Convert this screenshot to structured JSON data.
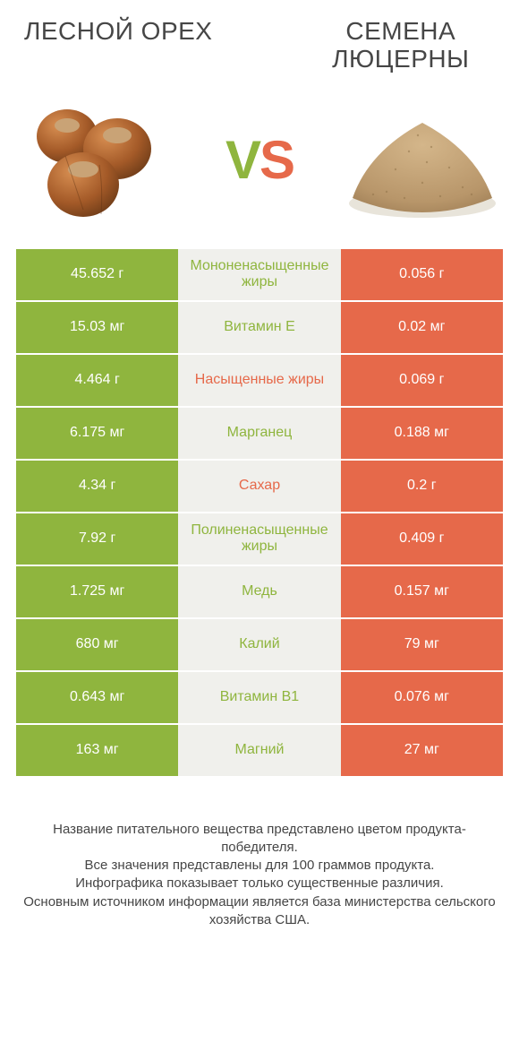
{
  "colors": {
    "green": "#8fb53e",
    "orange": "#e6694a",
    "mid_bg": "#f0f0ec",
    "text": "#464646"
  },
  "left_title": "ЛЕСНОЙ ОРЕХ",
  "right_title": "СЕМЕНА ЛЮЦЕРНЫ",
  "vs_v": "V",
  "vs_s": "S",
  "rows": [
    {
      "left": "45.652 г",
      "mid": "Мононенасыщенные жиры",
      "right": "0.056 г",
      "winner": "left"
    },
    {
      "left": "15.03 мг",
      "mid": "Витамин E",
      "right": "0.02 мг",
      "winner": "left"
    },
    {
      "left": "4.464 г",
      "mid": "Насыщенные жиры",
      "right": "0.069 г",
      "winner": "right"
    },
    {
      "left": "6.175 мг",
      "mid": "Марганец",
      "right": "0.188 мг",
      "winner": "left"
    },
    {
      "left": "4.34 г",
      "mid": "Сахар",
      "right": "0.2 г",
      "winner": "right"
    },
    {
      "left": "7.92 г",
      "mid": "Полиненасыщенные жиры",
      "right": "0.409 г",
      "winner": "left"
    },
    {
      "left": "1.725 мг",
      "mid": "Медь",
      "right": "0.157 мг",
      "winner": "left"
    },
    {
      "left": "680 мг",
      "mid": "Калий",
      "right": "79 мг",
      "winner": "left"
    },
    {
      "left": "0.643 мг",
      "mid": "Витамин B1",
      "right": "0.076 мг",
      "winner": "left"
    },
    {
      "left": "163 мг",
      "mid": "Магний",
      "right": "27 мг",
      "winner": "left"
    }
  ],
  "footer_lines": [
    "Название питательного вещества представлено цветом продукта-победителя.",
    "Все значения представлены для 100 граммов продукта.",
    "Инфографика показывает только существенные различия.",
    "Основным источником информации является база министерства сельского хозяйства США."
  ]
}
